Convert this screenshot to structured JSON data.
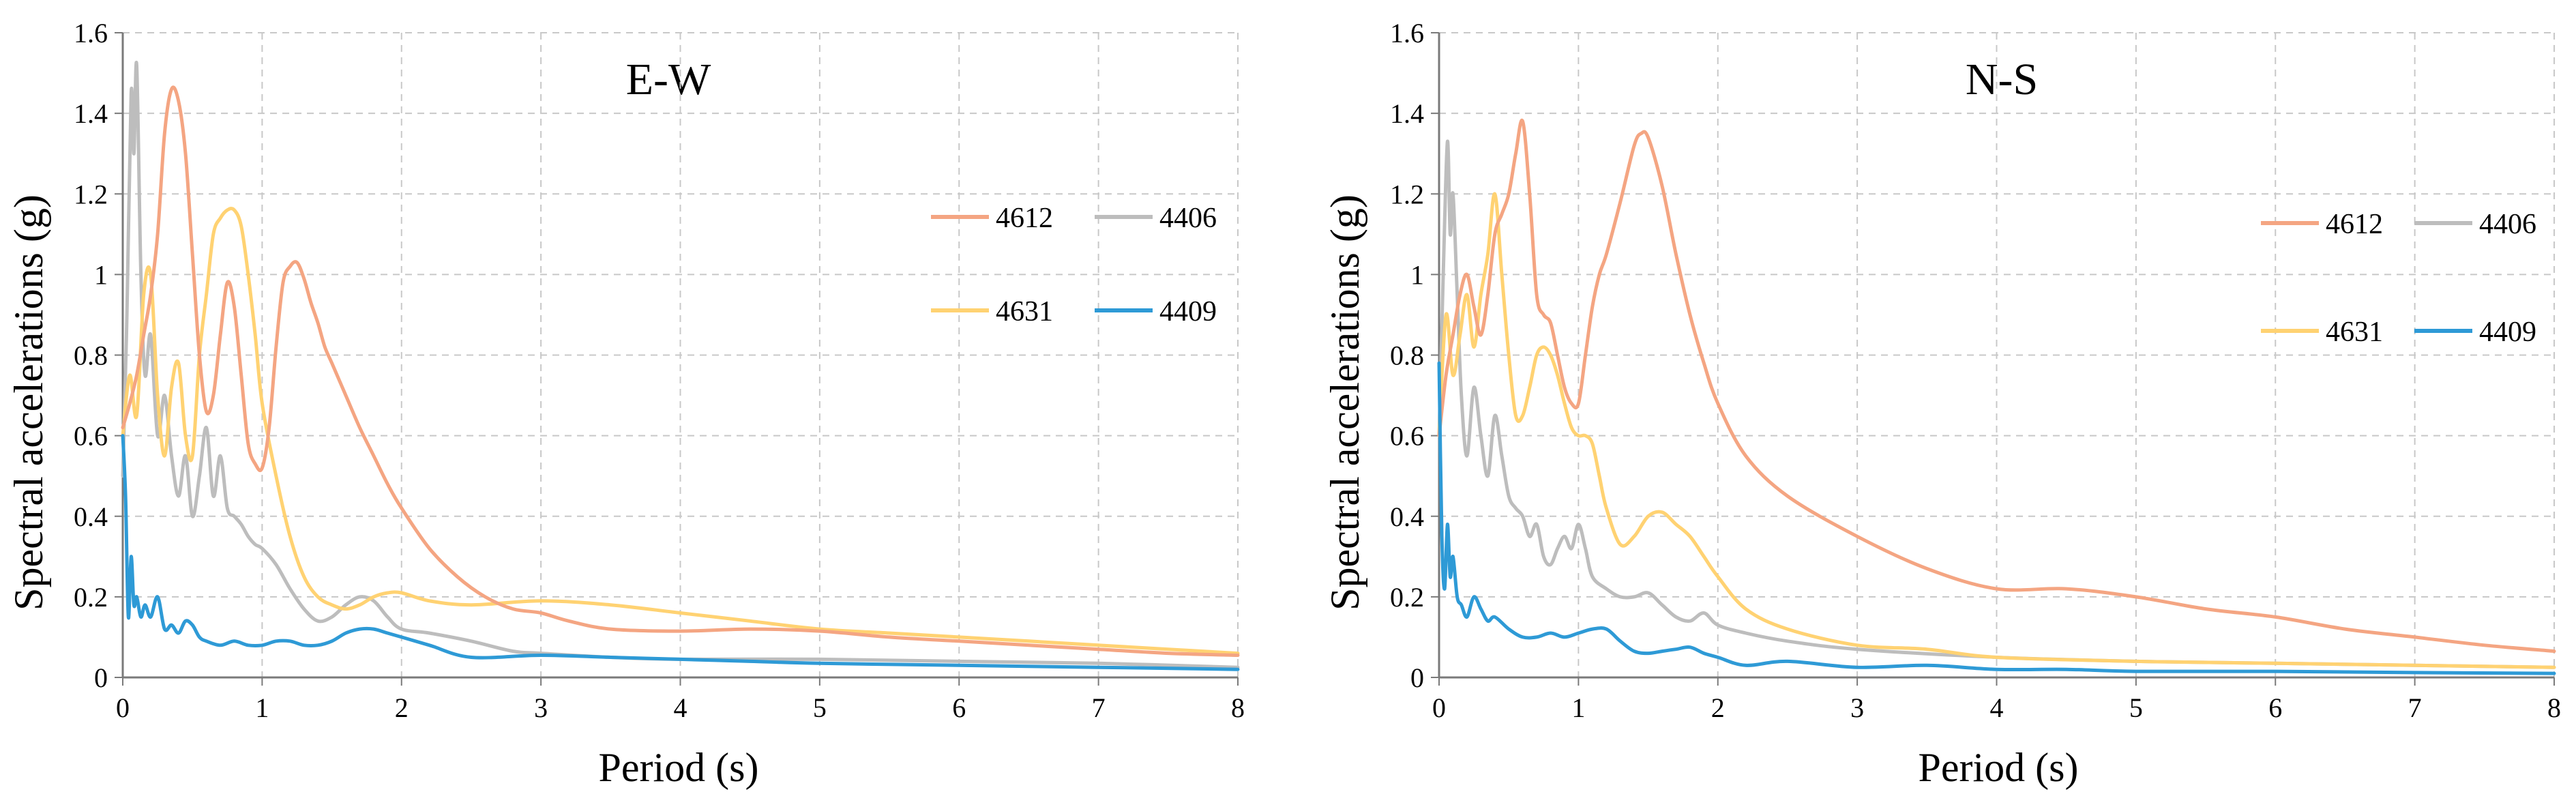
{
  "chart_data": [
    {
      "type": "line",
      "title": "E-W",
      "xlabel": "Period (s)",
      "ylabel": "Spectral accelerations (g)",
      "xlim": [
        0,
        8
      ],
      "ylim": [
        0,
        1.6
      ],
      "xticks": [
        "0",
        "1",
        "2",
        "3",
        "4",
        "5",
        "6",
        "7",
        "8"
      ],
      "yticks": [
        "0",
        "0.2",
        "0.4",
        "0.6",
        "0.8",
        "1",
        "1.2",
        "1.4",
        "1.6"
      ],
      "grid": true,
      "legend_position": "right",
      "series": [
        {
          "name": "4612",
          "color": "#F4A582",
          "x": [
            0,
            0.05,
            0.1,
            0.15,
            0.2,
            0.25,
            0.3,
            0.35,
            0.4,
            0.45,
            0.5,
            0.55,
            0.6,
            0.65,
            0.7,
            0.75,
            0.8,
            0.85,
            0.9,
            0.95,
            1.0,
            1.05,
            1.1,
            1.15,
            1.2,
            1.25,
            1.3,
            1.35,
            1.4,
            1.45,
            1.5,
            1.6,
            1.7,
            1.8,
            1.9,
            2.0,
            2.2,
            2.4,
            2.6,
            2.8,
            3.0,
            3.2,
            3.5,
            4.0,
            4.5,
            5.0,
            5.5,
            6.0,
            6.5,
            7.0,
            7.5,
            8.0
          ],
          "values": [
            0.62,
            0.68,
            0.75,
            0.85,
            0.95,
            1.1,
            1.35,
            1.46,
            1.43,
            1.3,
            1.05,
            0.8,
            0.66,
            0.7,
            0.85,
            0.98,
            0.92,
            0.75,
            0.58,
            0.53,
            0.52,
            0.62,
            0.82,
            0.98,
            1.02,
            1.03,
            0.99,
            0.93,
            0.88,
            0.82,
            0.78,
            0.7,
            0.62,
            0.55,
            0.48,
            0.42,
            0.32,
            0.25,
            0.2,
            0.17,
            0.16,
            0.14,
            0.12,
            0.115,
            0.12,
            0.115,
            0.1,
            0.09,
            0.08,
            0.07,
            0.06,
            0.055
          ]
        },
        {
          "name": "4406",
          "color": "#BDBDBD",
          "x": [
            0,
            0.03,
            0.06,
            0.08,
            0.1,
            0.13,
            0.16,
            0.2,
            0.25,
            0.3,
            0.35,
            0.4,
            0.45,
            0.5,
            0.55,
            0.6,
            0.65,
            0.7,
            0.75,
            0.8,
            0.85,
            0.9,
            0.95,
            1.0,
            1.1,
            1.2,
            1.3,
            1.4,
            1.5,
            1.6,
            1.7,
            1.8,
            1.9,
            2.0,
            2.2,
            2.5,
            2.8,
            3.0,
            3.5,
            4.0,
            5.0,
            6.0,
            7.0,
            8.0
          ],
          "values": [
            0.5,
            0.9,
            1.45,
            1.3,
            1.52,
            1.0,
            0.75,
            0.85,
            0.6,
            0.7,
            0.55,
            0.45,
            0.55,
            0.4,
            0.5,
            0.62,
            0.45,
            0.55,
            0.42,
            0.4,
            0.38,
            0.35,
            0.33,
            0.32,
            0.28,
            0.22,
            0.17,
            0.14,
            0.15,
            0.18,
            0.2,
            0.19,
            0.15,
            0.12,
            0.11,
            0.09,
            0.065,
            0.06,
            0.05,
            0.045,
            0.045,
            0.04,
            0.035,
            0.025
          ]
        },
        {
          "name": "4631",
          "color": "#FFD272",
          "x": [
            0,
            0.05,
            0.1,
            0.15,
            0.2,
            0.25,
            0.3,
            0.35,
            0.4,
            0.45,
            0.5,
            0.55,
            0.6,
            0.65,
            0.7,
            0.75,
            0.8,
            0.85,
            0.9,
            0.95,
            1.0,
            1.1,
            1.2,
            1.3,
            1.4,
            1.5,
            1.6,
            1.7,
            1.8,
            1.9,
            2.0,
            2.2,
            2.5,
            3.0,
            3.5,
            4.0,
            4.5,
            5.0,
            5.5,
            6.0,
            6.5,
            7.0,
            7.5,
            8.0
          ],
          "values": [
            0.6,
            0.75,
            0.65,
            0.95,
            1.0,
            0.7,
            0.55,
            0.72,
            0.78,
            0.6,
            0.55,
            0.8,
            0.95,
            1.1,
            1.14,
            1.16,
            1.16,
            1.12,
            1.0,
            0.85,
            0.68,
            0.5,
            0.35,
            0.25,
            0.2,
            0.18,
            0.17,
            0.18,
            0.2,
            0.21,
            0.21,
            0.19,
            0.18,
            0.19,
            0.18,
            0.16,
            0.14,
            0.12,
            0.11,
            0.1,
            0.09,
            0.08,
            0.07,
            0.06
          ]
        },
        {
          "name": "4409",
          "color": "#2E9AD6",
          "x": [
            0,
            0.02,
            0.04,
            0.06,
            0.08,
            0.1,
            0.13,
            0.16,
            0.2,
            0.25,
            0.3,
            0.35,
            0.4,
            0.45,
            0.5,
            0.55,
            0.6,
            0.7,
            0.8,
            0.9,
            1.0,
            1.1,
            1.2,
            1.3,
            1.4,
            1.5,
            1.6,
            1.7,
            1.8,
            1.9,
            2.0,
            2.2,
            2.5,
            3.0,
            3.5,
            4.0,
            4.5,
            5.0,
            6.0,
            7.0,
            8.0
          ],
          "values": [
            0.6,
            0.45,
            0.15,
            0.3,
            0.18,
            0.2,
            0.15,
            0.18,
            0.15,
            0.2,
            0.12,
            0.13,
            0.11,
            0.14,
            0.13,
            0.1,
            0.09,
            0.08,
            0.09,
            0.08,
            0.08,
            0.09,
            0.09,
            0.08,
            0.08,
            0.09,
            0.11,
            0.12,
            0.12,
            0.11,
            0.1,
            0.08,
            0.05,
            0.055,
            0.05,
            0.045,
            0.04,
            0.035,
            0.03,
            0.025,
            0.02
          ]
        }
      ]
    },
    {
      "type": "line",
      "title": "N-S",
      "xlabel": "Period (s)",
      "ylabel": "Spectral accelerations (g)",
      "xlim": [
        0,
        8
      ],
      "ylim": [
        0,
        1.6
      ],
      "xticks": [
        "0",
        "1",
        "2",
        "3",
        "4",
        "5",
        "6",
        "7",
        "8"
      ],
      "yticks": [
        "0",
        "0.2",
        "0.4",
        "0.6",
        "0.8",
        "1",
        "1.2",
        "1.4",
        "1.6"
      ],
      "grid": true,
      "legend_position": "right",
      "series": [
        {
          "name": "4612",
          "color": "#F4A582",
          "x": [
            0,
            0.05,
            0.1,
            0.15,
            0.2,
            0.25,
            0.3,
            0.35,
            0.4,
            0.45,
            0.5,
            0.55,
            0.6,
            0.65,
            0.7,
            0.75,
            0.8,
            0.85,
            0.9,
            0.95,
            1.0,
            1.05,
            1.1,
            1.15,
            1.2,
            1.3,
            1.4,
            1.45,
            1.5,
            1.6,
            1.7,
            1.8,
            1.9,
            2.0,
            2.2,
            2.5,
            3.0,
            3.5,
            4.0,
            4.5,
            5.0,
            5.5,
            6.0,
            6.5,
            7.0,
            7.5,
            8.0
          ],
          "values": [
            0.6,
            0.75,
            0.85,
            0.95,
            1.0,
            0.92,
            0.85,
            0.95,
            1.1,
            1.15,
            1.2,
            1.3,
            1.38,
            1.2,
            0.95,
            0.9,
            0.88,
            0.8,
            0.72,
            0.68,
            0.68,
            0.8,
            0.92,
            1.0,
            1.05,
            1.18,
            1.32,
            1.35,
            1.34,
            1.22,
            1.05,
            0.9,
            0.78,
            0.68,
            0.55,
            0.45,
            0.35,
            0.27,
            0.22,
            0.22,
            0.2,
            0.17,
            0.15,
            0.12,
            0.1,
            0.08,
            0.065
          ]
        },
        {
          "name": "4406",
          "color": "#BDBDBD",
          "x": [
            0,
            0.03,
            0.06,
            0.08,
            0.1,
            0.13,
            0.16,
            0.2,
            0.25,
            0.3,
            0.35,
            0.4,
            0.45,
            0.5,
            0.55,
            0.6,
            0.65,
            0.7,
            0.75,
            0.8,
            0.85,
            0.9,
            0.95,
            1.0,
            1.05,
            1.1,
            1.2,
            1.3,
            1.4,
            1.5,
            1.6,
            1.7,
            1.8,
            1.9,
            2.0,
            2.2,
            2.5,
            3.0,
            4.0,
            5.0,
            6.0,
            7.0,
            8.0
          ],
          "values": [
            0.6,
            1.0,
            1.33,
            1.1,
            1.2,
            0.95,
            0.7,
            0.55,
            0.72,
            0.6,
            0.5,
            0.65,
            0.55,
            0.45,
            0.42,
            0.4,
            0.35,
            0.38,
            0.3,
            0.28,
            0.32,
            0.35,
            0.32,
            0.38,
            0.32,
            0.25,
            0.22,
            0.2,
            0.2,
            0.21,
            0.18,
            0.15,
            0.14,
            0.16,
            0.13,
            0.11,
            0.09,
            0.07,
            0.05,
            0.04,
            0.035,
            0.03,
            0.025
          ]
        },
        {
          "name": "4631",
          "color": "#FFD272",
          "x": [
            0,
            0.05,
            0.1,
            0.15,
            0.2,
            0.25,
            0.3,
            0.35,
            0.4,
            0.45,
            0.5,
            0.55,
            0.6,
            0.65,
            0.7,
            0.75,
            0.8,
            0.85,
            0.9,
            0.95,
            1.0,
            1.05,
            1.1,
            1.15,
            1.2,
            1.3,
            1.4,
            1.5,
            1.6,
            1.7,
            1.8,
            1.9,
            2.0,
            2.2,
            2.5,
            3.0,
            3.5,
            4.0,
            5.0,
            6.0,
            7.0,
            8.0
          ],
          "values": [
            0.6,
            0.9,
            0.75,
            0.85,
            0.95,
            0.82,
            0.95,
            1.05,
            1.2,
            1.0,
            0.8,
            0.65,
            0.65,
            0.72,
            0.8,
            0.82,
            0.8,
            0.75,
            0.68,
            0.62,
            0.6,
            0.6,
            0.58,
            0.5,
            0.42,
            0.33,
            0.35,
            0.4,
            0.41,
            0.38,
            0.35,
            0.3,
            0.25,
            0.17,
            0.12,
            0.08,
            0.07,
            0.05,
            0.04,
            0.035,
            0.03,
            0.025
          ]
        },
        {
          "name": "4409",
          "color": "#2E9AD6",
          "x": [
            0,
            0.02,
            0.04,
            0.06,
            0.08,
            0.1,
            0.13,
            0.16,
            0.2,
            0.25,
            0.3,
            0.35,
            0.4,
            0.5,
            0.6,
            0.7,
            0.8,
            0.9,
            1.0,
            1.1,
            1.2,
            1.3,
            1.4,
            1.5,
            1.6,
            1.7,
            1.8,
            1.9,
            2.0,
            2.2,
            2.5,
            3.0,
            3.5,
            4.0,
            4.5,
            5.0,
            6.0,
            7.0,
            8.0
          ],
          "values": [
            0.78,
            0.35,
            0.22,
            0.38,
            0.25,
            0.3,
            0.2,
            0.18,
            0.15,
            0.2,
            0.17,
            0.14,
            0.15,
            0.12,
            0.1,
            0.1,
            0.11,
            0.1,
            0.11,
            0.12,
            0.12,
            0.09,
            0.065,
            0.06,
            0.065,
            0.07,
            0.075,
            0.06,
            0.05,
            0.03,
            0.04,
            0.025,
            0.03,
            0.02,
            0.02,
            0.015,
            0.015,
            0.012,
            0.01
          ]
        }
      ]
    }
  ]
}
